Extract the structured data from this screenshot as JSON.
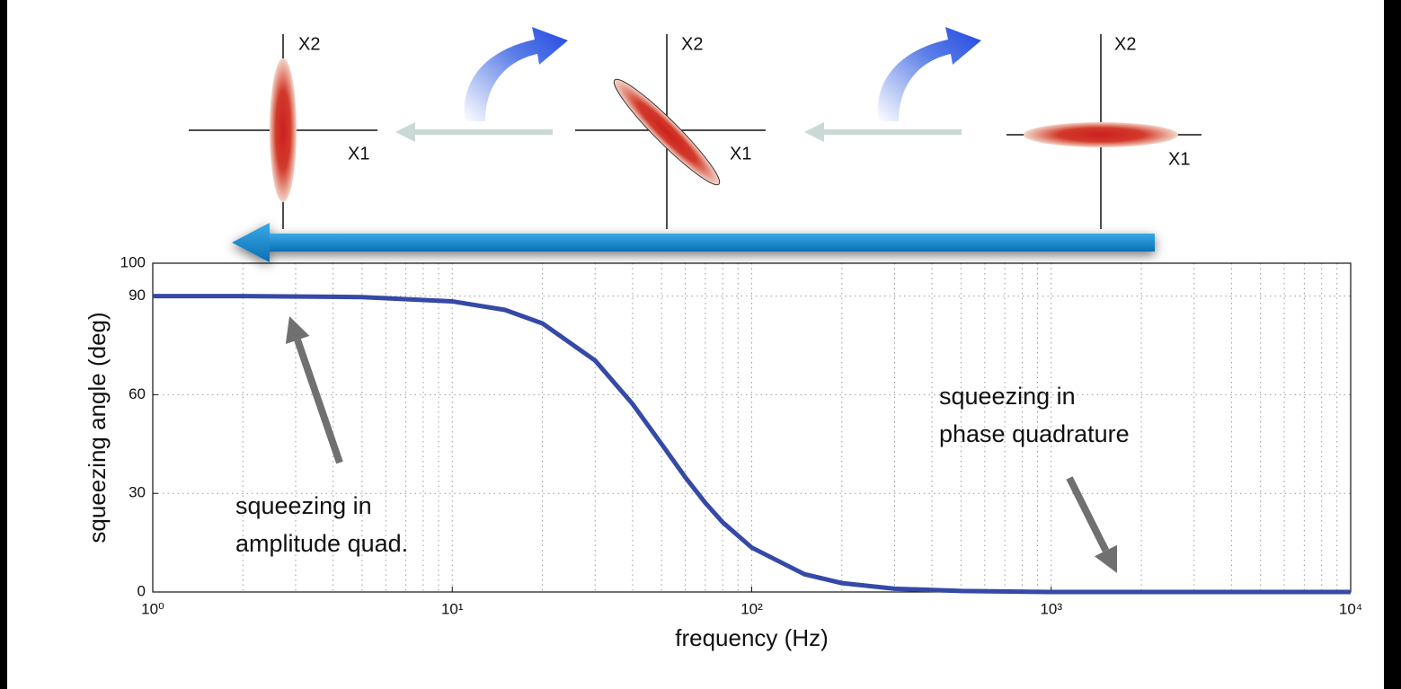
{
  "chart_data": {
    "type": "line",
    "x_label": "frequency (Hz)",
    "y_label": "squeezing angle (deg)",
    "log_x": true,
    "grid": true,
    "minor_grid": true,
    "xlim": [
      1,
      10000
    ],
    "xticks": [
      {
        "value": 1,
        "label": "10⁰"
      },
      {
        "value": 10,
        "label": "10¹"
      },
      {
        "value": 100,
        "label": "10²"
      },
      {
        "value": 1000,
        "label": "10³"
      },
      {
        "value": 10000,
        "label": "10⁴"
      }
    ],
    "ylim": [
      0,
      100
    ],
    "yticks": [
      0,
      30,
      60,
      90,
      100
    ],
    "x": [
      1,
      2,
      5,
      10,
      15,
      20,
      30,
      40,
      50,
      60,
      70,
      80,
      100,
      150,
      200,
      300,
      500,
      1000,
      10000
    ],
    "series": [
      {
        "color": "#3549a6",
        "values": [
          90,
          90,
          89.7,
          88.4,
          85.8,
          81.7,
          70.4,
          57.2,
          45,
          34.9,
          27.1,
          21.2,
          13.5,
          5.4,
          2.7,
          1,
          0.3,
          0,
          0
        ]
      }
    ],
    "annotations": [
      {
        "lines": [
          "squeezing in",
          "amplitude quad."
        ]
      },
      {
        "lines": [
          "squeezing in",
          "phase quadrature"
        ]
      }
    ]
  },
  "diagram": {
    "panels": [
      {
        "x_axis": "X1",
        "y_axis": "X2"
      },
      {
        "x_axis": "X1",
        "y_axis": "X2"
      },
      {
        "x_axis": "X1",
        "y_axis": "X2"
      }
    ]
  }
}
